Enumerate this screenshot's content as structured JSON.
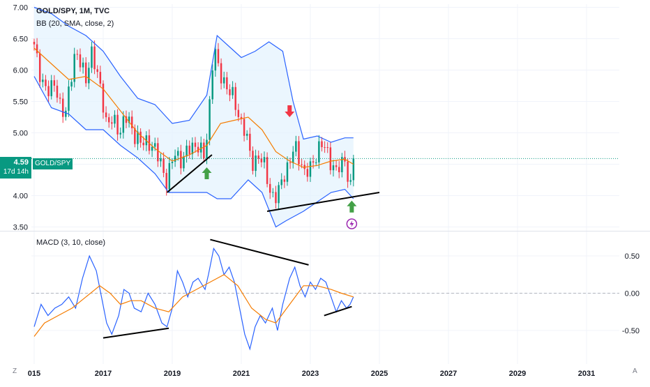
{
  "header": {
    "symbol_line": "GOLD/SPY, 1M, TVC",
    "bb_line": "BB (20, SMA, close, 2)",
    "macd_line": "MACD (3, 10, close)"
  },
  "price_badge": {
    "value": "4.59",
    "countdown": "17d 14h",
    "symbol_tag": "GOLD/SPY"
  },
  "corner_labels": {
    "left": "Z",
    "right": "A"
  },
  "colors": {
    "up": "#089981",
    "down": "#f23645",
    "bb_band": "#2962ff",
    "bb_basis": "#f57c00",
    "bb_fill": "#e3f2fd",
    "macd": "#2962ff",
    "signal": "#f57c00",
    "arrow_up": "#43a047",
    "arrow_down": "#f23645",
    "event": "#9c27b0"
  },
  "icons": {
    "event_marker": "lightning-icon"
  },
  "chart_data": [
    {
      "type": "candlestick",
      "name": "GOLD/SPY, 1M, TVC",
      "ylim": [
        3.45,
        7.05
      ],
      "y_ticks": [
        3.5,
        4.0,
        4.5,
        5.0,
        5.5,
        6.0,
        6.5,
        7.0
      ],
      "x_ticks": [
        {
          "label": "015",
          "year": 2015
        },
        {
          "label": "2017",
          "year": 2017
        },
        {
          "label": "2019",
          "year": 2019
        },
        {
          "label": "2021",
          "year": 2021
        },
        {
          "label": "2023",
          "year": 2023
        },
        {
          "label": "2025",
          "year": 2025
        },
        {
          "label": "2027",
          "year": 2027
        },
        {
          "label": "2029",
          "year": 2029
        },
        {
          "label": "2031",
          "year": 2031
        }
      ],
      "xlim_year": [
        2014.92,
        2031.95
      ],
      "last_close": 4.59,
      "close_anchors": [
        [
          2015.0,
          6.35
        ],
        [
          2015.15,
          6.0
        ],
        [
          2015.3,
          5.75
        ],
        [
          2015.45,
          5.6
        ],
        [
          2015.6,
          5.85
        ],
        [
          2015.75,
          5.45
        ],
        [
          2015.9,
          5.2
        ],
        [
          2016.05,
          5.9
        ],
        [
          2016.2,
          6.3
        ],
        [
          2016.35,
          6.05
        ],
        [
          2016.5,
          5.9
        ],
        [
          2016.65,
          6.3
        ],
        [
          2016.8,
          5.95
        ],
        [
          2016.95,
          5.7
        ],
        [
          2017.1,
          5.1
        ],
        [
          2017.3,
          5.2
        ],
        [
          2017.5,
          5.05
        ],
        [
          2017.7,
          5.25
        ],
        [
          2017.9,
          5.0
        ],
        [
          2018.1,
          4.8
        ],
        [
          2018.3,
          4.9
        ],
        [
          2018.5,
          4.7
        ],
        [
          2018.7,
          4.5
        ],
        [
          2018.85,
          4.2
        ],
        [
          2018.95,
          4.45
        ],
        [
          2019.1,
          4.7
        ],
        [
          2019.3,
          4.55
        ],
        [
          2019.5,
          4.75
        ],
        [
          2019.7,
          4.85
        ],
        [
          2019.85,
          4.65
        ],
        [
          2019.95,
          4.6
        ],
        [
          2020.1,
          5.6
        ],
        [
          2020.2,
          6.4
        ],
        [
          2020.35,
          5.95
        ],
        [
          2020.55,
          5.8
        ],
        [
          2020.75,
          5.55
        ],
        [
          2020.95,
          5.25
        ],
        [
          2021.1,
          5.05
        ],
        [
          2021.3,
          4.5
        ],
        [
          2021.5,
          4.65
        ],
        [
          2021.7,
          4.4
        ],
        [
          2021.85,
          4.05
        ],
        [
          2022.05,
          3.95
        ],
        [
          2022.2,
          4.3
        ],
        [
          2022.4,
          4.55
        ],
        [
          2022.55,
          4.75
        ],
        [
          2022.7,
          4.6
        ],
        [
          2022.85,
          4.35
        ],
        [
          2023.0,
          4.4
        ],
        [
          2023.15,
          4.65
        ],
        [
          2023.3,
          4.85
        ],
        [
          2023.45,
          4.7
        ],
        [
          2023.6,
          4.55
        ],
        [
          2023.75,
          4.4
        ],
        [
          2023.9,
          4.45
        ],
        [
          2024.0,
          4.6
        ],
        [
          2024.1,
          4.3
        ],
        [
          2024.15,
          4.05
        ],
        [
          2024.25,
          4.59
        ]
      ],
      "bb_upper": [
        [
          2015.0,
          7.0
        ],
        [
          2015.5,
          6.9
        ],
        [
          2016.0,
          6.7
        ],
        [
          2016.5,
          6.55
        ],
        [
          2017.0,
          6.3
        ],
        [
          2017.5,
          5.9
        ],
        [
          2018.0,
          5.55
        ],
        [
          2018.5,
          5.45
        ],
        [
          2019.0,
          5.15
        ],
        [
          2019.5,
          5.2
        ],
        [
          2020.0,
          5.6
        ],
        [
          2020.3,
          6.55
        ],
        [
          2020.7,
          6.35
        ],
        [
          2021.0,
          6.2
        ],
        [
          2021.4,
          6.3
        ],
        [
          2021.8,
          6.45
        ],
        [
          2022.2,
          6.3
        ],
        [
          2022.5,
          5.5
        ],
        [
          2022.8,
          4.9
        ],
        [
          2023.2,
          4.95
        ],
        [
          2023.6,
          4.85
        ],
        [
          2024.0,
          4.92
        ],
        [
          2024.25,
          4.92
        ]
      ],
      "bb_basis": [
        [
          2015.0,
          6.35
        ],
        [
          2015.5,
          6.1
        ],
        [
          2016.0,
          5.85
        ],
        [
          2016.5,
          5.9
        ],
        [
          2017.0,
          5.7
        ],
        [
          2017.5,
          5.35
        ],
        [
          2018.0,
          5.0
        ],
        [
          2018.5,
          4.75
        ],
        [
          2019.0,
          4.55
        ],
        [
          2019.5,
          4.65
        ],
        [
          2020.0,
          4.8
        ],
        [
          2020.4,
          5.15
        ],
        [
          2020.8,
          5.2
        ],
        [
          2021.2,
          5.25
        ],
        [
          2021.6,
          5.05
        ],
        [
          2022.0,
          4.7
        ],
        [
          2022.4,
          4.55
        ],
        [
          2022.8,
          4.45
        ],
        [
          2023.2,
          4.48
        ],
        [
          2023.6,
          4.55
        ],
        [
          2024.0,
          4.58
        ],
        [
          2024.25,
          4.5
        ]
      ],
      "bb_lower": [
        [
          2015.0,
          5.9
        ],
        [
          2015.5,
          5.4
        ],
        [
          2016.0,
          5.3
        ],
        [
          2016.5,
          5.05
        ],
        [
          2017.0,
          5.05
        ],
        [
          2017.5,
          4.8
        ],
        [
          2018.0,
          4.6
        ],
        [
          2018.5,
          4.35
        ],
        [
          2018.9,
          4.05
        ],
        [
          2019.5,
          4.05
        ],
        [
          2020.0,
          4.05
        ],
        [
          2020.3,
          3.95
        ],
        [
          2020.7,
          3.95
        ],
        [
          2021.2,
          4.25
        ],
        [
          2021.6,
          4.05
        ],
        [
          2022.0,
          3.5
        ],
        [
          2022.3,
          3.6
        ],
        [
          2022.8,
          3.75
        ],
        [
          2023.2,
          3.9
        ],
        [
          2023.6,
          4.05
        ],
        [
          2024.0,
          4.1
        ],
        [
          2024.25,
          3.95
        ]
      ],
      "trendlines": [
        [
          [
            2018.85,
            4.05
          ],
          [
            2020.15,
            4.65
          ]
        ],
        [
          [
            2021.75,
            3.75
          ],
          [
            2025.0,
            4.05
          ]
        ]
      ],
      "markers": [
        {
          "kind": "arrow-up",
          "year": 2020.0,
          "price": 4.35
        },
        {
          "kind": "arrow-down",
          "year": 2022.4,
          "price": 5.35
        },
        {
          "kind": "arrow-up",
          "year": 2024.2,
          "price": 3.82
        },
        {
          "kind": "event",
          "year": 2024.2,
          "price": 3.55
        }
      ]
    },
    {
      "type": "line",
      "name": "MACD (3, 10, close)",
      "ylim": [
        -0.95,
        0.8
      ],
      "y_ticks": [
        0.5,
        0.0,
        -0.5
      ],
      "y_tick_labels": [
        "0.50",
        "0.00",
        "-0.50"
      ],
      "zero_line": 0.0,
      "series": [
        {
          "role": "macd",
          "points": [
            [
              2015.0,
              -0.45
            ],
            [
              2015.2,
              -0.15
            ],
            [
              2015.4,
              -0.3
            ],
            [
              2015.6,
              -0.2
            ],
            [
              2015.8,
              -0.15
            ],
            [
              2016.0,
              -0.05
            ],
            [
              2016.2,
              -0.2
            ],
            [
              2016.4,
              0.2
            ],
            [
              2016.6,
              0.5
            ],
            [
              2016.8,
              0.3
            ],
            [
              2016.95,
              -0.05
            ],
            [
              2017.1,
              -0.4
            ],
            [
              2017.25,
              -0.55
            ],
            [
              2017.45,
              -0.3
            ],
            [
              2017.6,
              0.05
            ],
            [
              2017.75,
              0.0
            ],
            [
              2017.9,
              -0.2
            ],
            [
              2018.1,
              -0.25
            ],
            [
              2018.3,
              0.0
            ],
            [
              2018.5,
              -0.15
            ],
            [
              2018.7,
              -0.4
            ],
            [
              2018.85,
              -0.45
            ],
            [
              2019.0,
              -0.2
            ],
            [
              2019.15,
              0.3
            ],
            [
              2019.3,
              0.15
            ],
            [
              2019.45,
              -0.05
            ],
            [
              2019.6,
              0.15
            ],
            [
              2019.75,
              0.2
            ],
            [
              2019.95,
              0.05
            ],
            [
              2020.05,
              0.25
            ],
            [
              2020.2,
              0.6
            ],
            [
              2020.35,
              0.5
            ],
            [
              2020.5,
              0.25
            ],
            [
              2020.65,
              0.35
            ],
            [
              2020.8,
              0.15
            ],
            [
              2020.95,
              -0.2
            ],
            [
              2021.1,
              -0.55
            ],
            [
              2021.25,
              -0.75
            ],
            [
              2021.4,
              -0.45
            ],
            [
              2021.55,
              -0.3
            ],
            [
              2021.7,
              -0.4
            ],
            [
              2021.9,
              -0.2
            ],
            [
              2022.05,
              -0.5
            ],
            [
              2022.2,
              -0.15
            ],
            [
              2022.4,
              0.2
            ],
            [
              2022.55,
              0.35
            ],
            [
              2022.7,
              0.1
            ],
            [
              2022.85,
              -0.05
            ],
            [
              2023.0,
              0.15
            ],
            [
              2023.15,
              0.05
            ],
            [
              2023.3,
              0.2
            ],
            [
              2023.45,
              0.15
            ],
            [
              2023.6,
              -0.05
            ],
            [
              2023.75,
              -0.25
            ],
            [
              2023.9,
              -0.1
            ],
            [
              2024.05,
              -0.2
            ],
            [
              2024.15,
              -0.15
            ],
            [
              2024.25,
              -0.05
            ]
          ]
        },
        {
          "role": "signal",
          "points": [
            [
              2015.0,
              -0.58
            ],
            [
              2015.3,
              -0.4
            ],
            [
              2015.7,
              -0.3
            ],
            [
              2016.1,
              -0.2
            ],
            [
              2016.5,
              -0.05
            ],
            [
              2016.9,
              0.1
            ],
            [
              2017.2,
              0.0
            ],
            [
              2017.5,
              -0.15
            ],
            [
              2017.8,
              -0.1
            ],
            [
              2018.1,
              -0.1
            ],
            [
              2018.5,
              -0.2
            ],
            [
              2018.9,
              -0.25
            ],
            [
              2019.3,
              -0.05
            ],
            [
              2019.7,
              0.05
            ],
            [
              2020.1,
              0.15
            ],
            [
              2020.5,
              0.25
            ],
            [
              2020.9,
              0.1
            ],
            [
              2021.3,
              -0.2
            ],
            [
              2021.7,
              -0.35
            ],
            [
              2022.0,
              -0.4
            ],
            [
              2022.4,
              -0.15
            ],
            [
              2022.8,
              0.1
            ],
            [
              2023.2,
              0.1
            ],
            [
              2023.6,
              0.05
            ],
            [
              2023.9,
              0.0
            ],
            [
              2024.25,
              -0.05
            ]
          ]
        }
      ],
      "trendlines": [
        [
          [
            2017.0,
            -0.6
          ],
          [
            2018.9,
            -0.47
          ]
        ],
        [
          [
            2020.1,
            0.72
          ],
          [
            2022.95,
            0.38
          ]
        ],
        [
          [
            2023.4,
            -0.3
          ],
          [
            2024.2,
            -0.18
          ]
        ]
      ]
    }
  ]
}
